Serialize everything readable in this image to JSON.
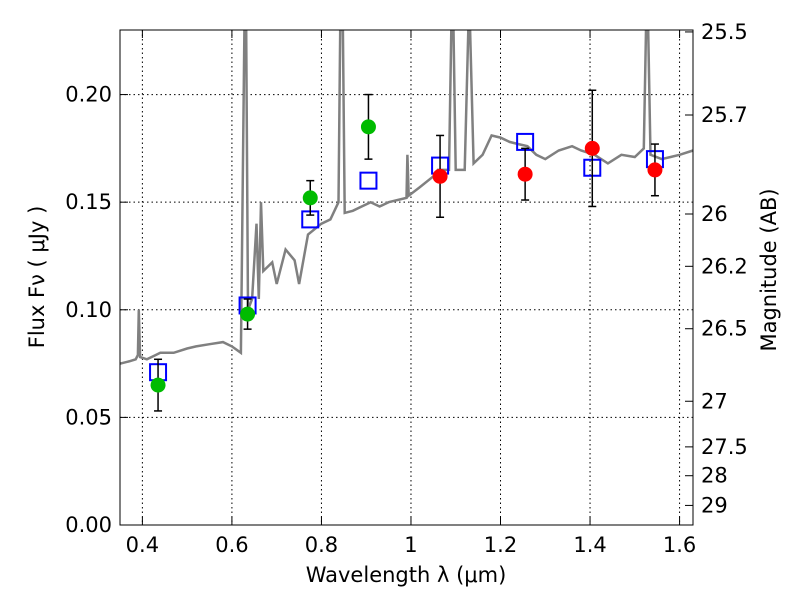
{
  "chart_data": {
    "type": "scatter",
    "title": "",
    "xlabel": "Wavelength  λ (μm)",
    "ylabel": "Flux  Fν  ( μJy )",
    "y2label": "Magnitude (AB)",
    "xlim": [
      0.35,
      1.63
    ],
    "ylim": [
      0.0,
      0.23
    ],
    "grid": true,
    "x_ticks": [
      0.4,
      0.6,
      0.8,
      1.0,
      1.2,
      1.4,
      1.6
    ],
    "x_tick_labels": [
      "0.4",
      "0.6",
      "0.8",
      "1",
      "1.2",
      "1.4",
      "1.6"
    ],
    "y_ticks": [
      0.0,
      0.05,
      0.1,
      0.15,
      0.2
    ],
    "y_tick_labels": [
      "0.00",
      "0.05",
      "0.10",
      "0.15",
      "0.20"
    ],
    "y2_ticks": [
      {
        "label": "25.5",
        "flux": 0.2291
      },
      {
        "label": "25.7",
        "flux": 0.1905
      },
      {
        "label": "26",
        "flux": 0.1445
      },
      {
        "label": "26.2",
        "flux": 0.1202
      },
      {
        "label": "26.5",
        "flux": 0.0912
      },
      {
        "label": "27",
        "flux": 0.0575
      },
      {
        "label": "27.5",
        "flux": 0.0363
      },
      {
        "label": "28",
        "flux": 0.0229
      },
      {
        "label": "29",
        "flux": 0.0091
      }
    ],
    "colors": {
      "model": "#808080",
      "green": "#00bb00",
      "red": "#ff0000",
      "squares": "#0000ff",
      "errorbar": "#000000"
    },
    "series": [
      {
        "marker": "line",
        "points": [
          [
            0.35,
            0.075
          ],
          [
            0.37,
            0.076
          ],
          [
            0.385,
            0.077
          ],
          [
            0.39,
            0.079
          ],
          [
            0.392,
            0.1
          ],
          [
            0.395,
            0.078
          ],
          [
            0.41,
            0.077
          ],
          [
            0.43,
            0.079
          ],
          [
            0.44,
            0.08
          ],
          [
            0.47,
            0.08
          ],
          [
            0.5,
            0.082
          ],
          [
            0.52,
            0.083
          ],
          [
            0.55,
            0.084
          ],
          [
            0.58,
            0.085
          ],
          [
            0.6,
            0.083
          ],
          [
            0.62,
            0.08
          ],
          [
            0.628,
            0.23
          ],
          [
            0.632,
            0.23
          ],
          [
            0.636,
            0.1
          ],
          [
            0.645,
            0.105
          ],
          [
            0.655,
            0.14
          ],
          [
            0.66,
            0.105
          ],
          [
            0.665,
            0.15
          ],
          [
            0.67,
            0.118
          ],
          [
            0.69,
            0.122
          ],
          [
            0.7,
            0.112
          ],
          [
            0.72,
            0.128
          ],
          [
            0.74,
            0.123
          ],
          [
            0.75,
            0.112
          ],
          [
            0.77,
            0.135
          ],
          [
            0.8,
            0.14
          ],
          [
            0.82,
            0.142
          ],
          [
            0.838,
            0.15
          ],
          [
            0.842,
            0.23
          ],
          [
            0.848,
            0.23
          ],
          [
            0.852,
            0.145
          ],
          [
            0.87,
            0.146
          ],
          [
            0.89,
            0.148
          ],
          [
            0.91,
            0.15
          ],
          [
            0.93,
            0.148
          ],
          [
            0.95,
            0.15
          ],
          [
            0.99,
            0.152
          ],
          [
            0.992,
            0.172
          ],
          [
            0.995,
            0.153
          ],
          [
            1.02,
            0.157
          ],
          [
            1.05,
            0.162
          ],
          [
            1.06,
            0.165
          ],
          [
            1.085,
            0.165
          ],
          [
            1.09,
            0.23
          ],
          [
            1.095,
            0.23
          ],
          [
            1.1,
            0.165
          ],
          [
            1.12,
            0.165
          ],
          [
            1.128,
            0.23
          ],
          [
            1.132,
            0.23
          ],
          [
            1.14,
            0.168
          ],
          [
            1.16,
            0.172
          ],
          [
            1.18,
            0.181
          ],
          [
            1.2,
            0.18
          ],
          [
            1.22,
            0.178
          ],
          [
            1.24,
            0.177
          ],
          [
            1.26,
            0.176
          ],
          [
            1.28,
            0.172
          ],
          [
            1.3,
            0.17
          ],
          [
            1.33,
            0.174
          ],
          [
            1.36,
            0.176
          ],
          [
            1.38,
            0.174
          ],
          [
            1.41,
            0.172
          ],
          [
            1.44,
            0.168
          ],
          [
            1.47,
            0.172
          ],
          [
            1.5,
            0.171
          ],
          [
            1.52,
            0.175
          ],
          [
            1.525,
            0.23
          ],
          [
            1.53,
            0.23
          ],
          [
            1.535,
            0.172
          ],
          [
            1.56,
            0.17
          ],
          [
            1.58,
            0.171
          ],
          [
            1.6,
            0.172
          ],
          [
            1.63,
            0.174
          ]
        ]
      },
      {
        "marker": "square",
        "points": [
          [
            0.435,
            0.071
          ],
          [
            0.635,
            0.102
          ],
          [
            0.775,
            0.142
          ],
          [
            0.905,
            0.16
          ],
          [
            1.065,
            0.167
          ],
          [
            1.255,
            0.178
          ],
          [
            1.405,
            0.166
          ],
          [
            1.545,
            0.17
          ]
        ]
      },
      {
        "marker": "circle-green",
        "points": [
          {
            "x": 0.435,
            "y": 0.065,
            "err": 0.012
          },
          {
            "x": 0.635,
            "y": 0.098,
            "err": 0.007
          },
          {
            "x": 0.775,
            "y": 0.152,
            "err": 0.008
          },
          {
            "x": 0.905,
            "y": 0.185,
            "err": 0.015
          }
        ]
      },
      {
        "marker": "circle-red",
        "points": [
          {
            "x": 1.065,
            "y": 0.162,
            "err": 0.019
          },
          {
            "x": 1.255,
            "y": 0.163,
            "err": 0.012
          },
          {
            "x": 1.405,
            "y": 0.175,
            "err": 0.027
          },
          {
            "x": 1.545,
            "y": 0.165,
            "err": 0.012
          }
        ]
      }
    ]
  }
}
